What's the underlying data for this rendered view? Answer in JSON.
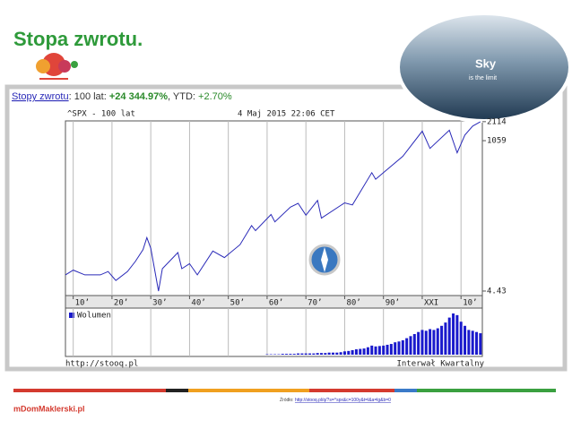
{
  "slide_title": "Stopa zwrotu.",
  "header": {
    "link": "Stopy zwrotu",
    "period": ": 100 lat: ",
    "return": "+24 344.97%",
    "ytd_label": ", YTD: ",
    "ytd": "+2.70%"
  },
  "badge": {
    "title": "Sky",
    "subtitle": "is the limit"
  },
  "footer": {
    "left": "http://stooq.pl",
    "right": "Interwał Kwartalny"
  },
  "source": {
    "label": "Źródło: ",
    "url": "http://stooq.pl/q/?s=^spx&c=100y&t=l&a=lg&b=0"
  },
  "brand": "mDomMaklerski.pl",
  "chart_data": {
    "type": "line",
    "title": "^SPX - 100 lat",
    "subtitle": "4 Maj 2015 22:06 CET",
    "log_scale": true,
    "grid": true,
    "color": "#2a2ab8",
    "x": [
      1908,
      1910,
      1913,
      1917,
      1919,
      1921,
      1924,
      1926,
      1928,
      1929,
      1930,
      1932,
      1933,
      1937,
      1938,
      1940,
      1942,
      1946,
      1949,
      1953,
      1956,
      1957,
      1961,
      1962,
      1966,
      1968,
      1970,
      1973,
      1974,
      1980,
      1982,
      1987,
      1988,
      1990,
      1995,
      2000,
      2002,
      2007,
      2009,
      2011,
      2013,
      2015
    ],
    "values": [
      8,
      9.5,
      8,
      8,
      9,
      6.5,
      9,
      13,
      20,
      31,
      21,
      4.43,
      10,
      18,
      10,
      12,
      8,
      19,
      15,
      24,
      48,
      40,
      72,
      55,
      94,
      108,
      70,
      120,
      63,
      110,
      102,
      330,
      260,
      330,
      600,
      1500,
      800,
      1550,
      680,
      1300,
      1800,
      2114
    ],
    "xlim": [
      1908,
      2015.5
    ],
    "ylim": [
      3.76,
      2174
    ],
    "xticks": [
      {
        "value": 1910,
        "label": "10’"
      },
      {
        "value": 1920,
        "label": "20’"
      },
      {
        "value": 1930,
        "label": "30’"
      },
      {
        "value": 1940,
        "label": "40’"
      },
      {
        "value": 1950,
        "label": "50’"
      },
      {
        "value": 1960,
        "label": "60’"
      },
      {
        "value": 1970,
        "label": "70’"
      },
      {
        "value": 1980,
        "label": "80’"
      },
      {
        "value": 1990,
        "label": "90’"
      },
      {
        "value": 2000,
        "label": "XXI"
      },
      {
        "value": 2010,
        "label": "10’"
      }
    ],
    "yticks": [
      2114,
      1059,
      4.43
    ],
    "volume": {
      "label": "Wolumen",
      "color": "#1a1acc",
      "ylim": [
        0,
        100
      ],
      "x": [
        1960,
        1961,
        1962,
        1963,
        1964,
        1965,
        1966,
        1967,
        1968,
        1969,
        1970,
        1971,
        1972,
        1973,
        1974,
        1975,
        1976,
        1977,
        1978,
        1979,
        1980,
        1981,
        1982,
        1983,
        1984,
        1985,
        1986,
        1987,
        1988,
        1989,
        1990,
        1991,
        1992,
        1993,
        1994,
        1995,
        1996,
        1997,
        1998,
        1999,
        2000,
        2001,
        2002,
        2003,
        2004,
        2005,
        2006,
        2007,
        2008,
        2009,
        2010,
        2011,
        2012,
        2013,
        2014,
        2015
      ],
      "values": [
        1,
        1,
        1,
        1,
        2,
        2,
        2,
        2,
        3,
        3,
        3,
        3,
        3,
        4,
        4,
        4,
        5,
        5,
        5,
        6,
        8,
        9,
        11,
        13,
        14,
        15,
        18,
        22,
        20,
        21,
        22,
        24,
        26,
        30,
        32,
        35,
        40,
        45,
        50,
        55,
        60,
        58,
        62,
        60,
        64,
        70,
        78,
        90,
        100,
        96,
        80,
        70,
        60,
        58,
        55,
        52
      ]
    }
  }
}
